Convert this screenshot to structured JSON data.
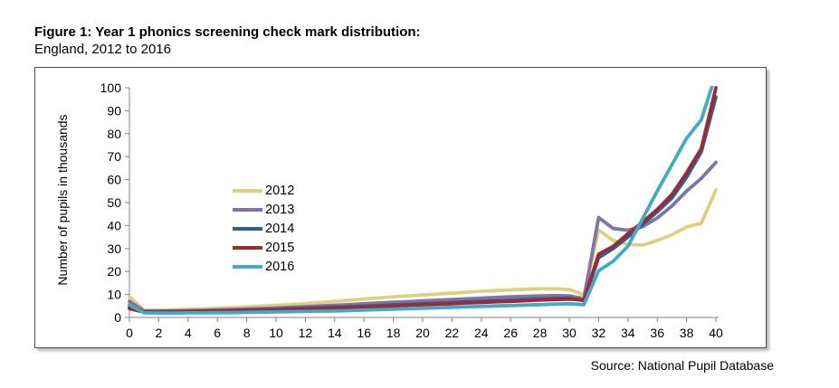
{
  "header": {
    "title_bold": "Figure 1: Year 1 phonics screening check mark distribution:",
    "subtitle": "England, 2012 to 2016"
  },
  "footer": {
    "source": "Source: National Pupil Database"
  },
  "chart_data": {
    "type": "line",
    "title": "Year 1 phonics screening check mark distribution, England, 2012 to 2016",
    "xlabel": "",
    "ylabel": "Number of pupils in thousands",
    "xlim": [
      0,
      40
    ],
    "ylim": [
      0,
      100
    ],
    "x_ticks": [
      0,
      2,
      4,
      6,
      8,
      10,
      12,
      14,
      16,
      18,
      20,
      22,
      24,
      26,
      28,
      30,
      32,
      34,
      36,
      38,
      40
    ],
    "y_ticks": [
      0,
      10,
      20,
      30,
      40,
      50,
      60,
      70,
      80,
      90,
      100
    ],
    "grid": false,
    "legend_position": "inside-left",
    "axis_color": "#808080",
    "x": [
      0,
      1,
      2,
      3,
      4,
      5,
      6,
      7,
      8,
      9,
      10,
      11,
      12,
      13,
      14,
      15,
      16,
      17,
      18,
      19,
      20,
      21,
      22,
      23,
      24,
      25,
      26,
      27,
      28,
      29,
      30,
      31,
      32,
      33,
      34,
      35,
      36,
      37,
      38,
      39,
      40
    ],
    "series": [
      {
        "name": "2012",
        "color": "#ddd07e",
        "values": [
          9,
          3.2,
          3.2,
          3.3,
          3.5,
          3.7,
          4,
          4.3,
          4.6,
          5,
          5.3,
          5.6,
          6,
          6.5,
          7,
          7.5,
          8,
          8.5,
          9,
          9.4,
          9.8,
          10.2,
          10.6,
          11,
          11.4,
          11.7,
          12,
          12.3,
          12.5,
          12.5,
          12.2,
          9.8,
          38,
          33.5,
          31.8,
          31.5,
          33.5,
          36,
          39.4,
          41,
          55.5
        ]
      },
      {
        "name": "2013",
        "color": "#8172a8",
        "values": [
          7,
          2.8,
          2.8,
          2.9,
          3,
          3.1,
          3.3,
          3.5,
          3.7,
          3.9,
          4.1,
          4.4,
          4.7,
          5,
          5.3,
          5.6,
          6,
          6.3,
          6.6,
          6.9,
          7.2,
          7.5,
          7.8,
          8.1,
          8.4,
          8.7,
          9,
          9.2,
          9.4,
          9.5,
          9.4,
          8.2,
          43.5,
          38.7,
          38,
          39.5,
          43.3,
          48.5,
          55,
          60.5,
          67.5
        ]
      },
      {
        "name": "2014",
        "color": "#31628c",
        "values": [
          4.5,
          2.5,
          2.5,
          2.6,
          2.7,
          2.8,
          2.9,
          3,
          3.2,
          3.4,
          3.6,
          3.8,
          4,
          4.2,
          4.5,
          4.7,
          5,
          5.2,
          5.5,
          5.7,
          6,
          6.2,
          6.5,
          6.8,
          7,
          7.3,
          7.5,
          7.8,
          8,
          8.2,
          8.5,
          7.3,
          26,
          30,
          35,
          40.5,
          46,
          52,
          61,
          72,
          96
        ]
      },
      {
        "name": "2015",
        "color": "#9c2a33",
        "values": [
          3.8,
          2.3,
          2.3,
          2.4,
          2.5,
          2.6,
          2.7,
          2.8,
          2.9,
          3.1,
          3.2,
          3.4,
          3.6,
          3.8,
          4,
          4.3,
          4.5,
          4.8,
          5,
          5.3,
          5.5,
          5.8,
          6,
          6.3,
          6.5,
          6.8,
          7,
          7.3,
          7.6,
          7.8,
          8,
          7.5,
          27.5,
          31,
          36.5,
          41.5,
          47,
          53.5,
          63,
          73.5,
          100
        ]
      },
      {
        "name": "2016",
        "color": "#45a9c5",
        "values": [
          5.5,
          2,
          1.9,
          1.9,
          2,
          2,
          2.1,
          2.1,
          2.2,
          2.3,
          2.4,
          2.5,
          2.6,
          2.7,
          2.8,
          3,
          3.2,
          3.4,
          3.6,
          3.8,
          4,
          4.2,
          4.4,
          4.6,
          4.8,
          5,
          5.2,
          5.4,
          5.6,
          5.8,
          6,
          5.6,
          20.3,
          24.5,
          31,
          43,
          55,
          66.5,
          78,
          86,
          106
        ]
      }
    ]
  }
}
